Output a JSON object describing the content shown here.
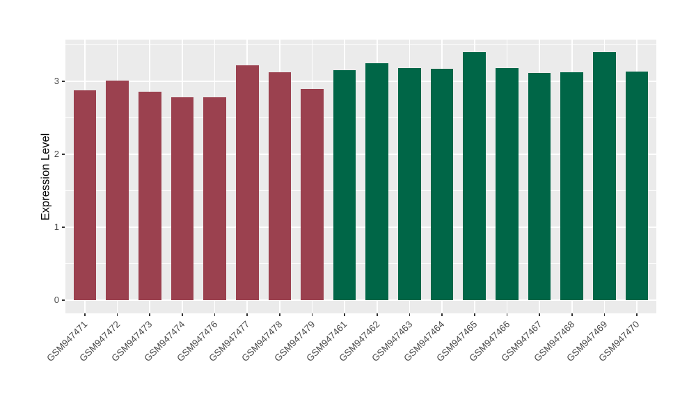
{
  "chart_data": {
    "type": "bar",
    "title": "",
    "xlabel": "",
    "ylabel": "Expression Level",
    "ylim": [
      -0.18,
      3.57
    ],
    "yticks": [
      0,
      1,
      2,
      3
    ],
    "grid": "on",
    "legend": "none",
    "categories": [
      "GSM947471",
      "GSM947472",
      "GSM947473",
      "GSM947474",
      "GSM947476",
      "GSM947477",
      "GSM947478",
      "GSM947479",
      "GSM947461",
      "GSM947462",
      "GSM947463",
      "GSM947464",
      "GSM947465",
      "GSM947466",
      "GSM947467",
      "GSM947468",
      "GSM947469",
      "GSM947470"
    ],
    "values": [
      2.88,
      3.01,
      2.86,
      2.78,
      2.78,
      3.22,
      3.12,
      2.9,
      3.15,
      3.25,
      3.18,
      3.17,
      3.4,
      3.18,
      3.11,
      3.12,
      3.4,
      3.13
    ],
    "groups": [
      {
        "name": "group-1",
        "color": "#9B414F",
        "start_index": 0,
        "end_index": 7
      },
      {
        "name": "group-2",
        "color": "#006647",
        "start_index": 8,
        "end_index": 17
      }
    ],
    "style": {
      "panel_bg": "#EBEBEB",
      "grid_color": "#FFFFFF",
      "axis_text_color": "#4A4A4A",
      "axis_title_color": "#000000",
      "tick_mark_color": "#333333"
    }
  }
}
